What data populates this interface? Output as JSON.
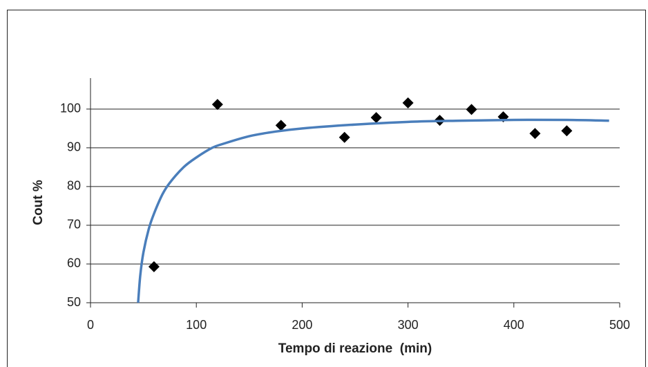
{
  "chart_data": {
    "type": "scatter",
    "x_label": "Tempo di reazione  (min)",
    "y_label": "Cout %",
    "xlim": [
      0,
      500
    ],
    "xticks": [
      0,
      100,
      200,
      300,
      400,
      500
    ],
    "ylim": [
      50,
      108
    ],
    "yticks": [
      50,
      60,
      70,
      80,
      90,
      100
    ],
    "grid": true,
    "series": [
      {
        "type": "scatter",
        "marker": "diamond",
        "color": "#000000",
        "x": [
          60,
          120,
          180,
          240,
          270,
          300,
          330,
          360,
          390,
          420,
          450
        ],
        "values": [
          59.3,
          101.2,
          95.8,
          92.7,
          97.8,
          101.6,
          97.1,
          99.9,
          98,
          93.7,
          94.4
        ]
      },
      {
        "type": "line",
        "color": "#4a7ebb",
        "x": [
          45,
          47,
          50,
          55,
          60,
          68,
          75,
          88,
          100,
          115,
          125,
          150,
          175,
          200,
          250,
          300,
          350,
          400,
          450,
          490
        ],
        "values": [
          50,
          57,
          63,
          69,
          73,
          78,
          81,
          85,
          87.5,
          90,
          91,
          93,
          94.2,
          95,
          96,
          96.7,
          97,
          97.2,
          97.2,
          97
        ]
      }
    ]
  }
}
